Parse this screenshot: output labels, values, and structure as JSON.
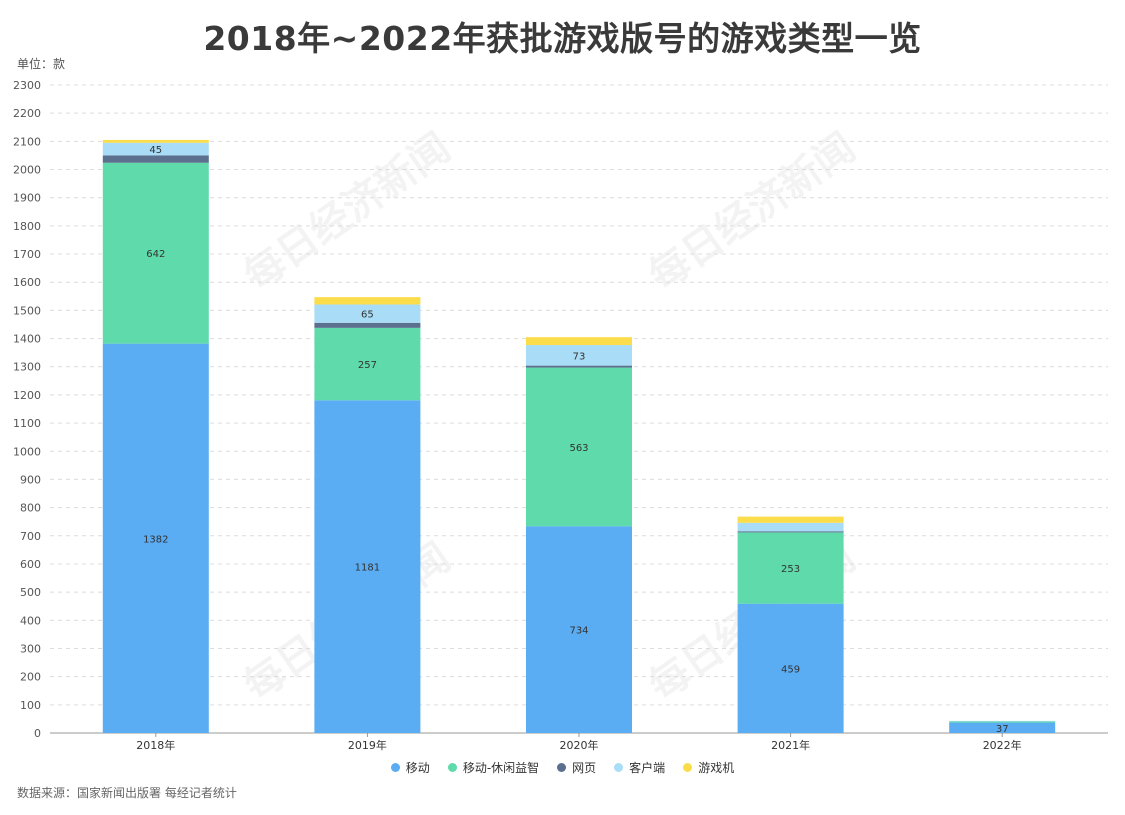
{
  "title": "2018年~2022年获批游戏版号的游戏类型一览",
  "unit_label": "单位：款",
  "source": "数据来源：国家新闻出版署 每经记者统计",
  "watermark": "每日经济新闻",
  "colors": {
    "移动": "#5aacf3",
    "移动-休闲益智": "#5fdaab",
    "网页": "#5b6f8f",
    "客户端": "#a9dcf6",
    "游戏机": "#fbdc4a"
  },
  "chart_data": {
    "type": "bar",
    "stacked": true,
    "categories": [
      "2018年",
      "2019年",
      "2020年",
      "2021年",
      "2022年"
    ],
    "ylim": [
      0,
      2300
    ],
    "yticks": [
      0,
      100,
      200,
      300,
      400,
      500,
      600,
      700,
      800,
      900,
      1000,
      1100,
      1200,
      1300,
      1400,
      1500,
      1600,
      1700,
      1800,
      1900,
      2000,
      2100,
      2200,
      2300
    ],
    "grid": true,
    "legend_position": "bottom",
    "series": [
      {
        "name": "移动",
        "values": [
          1382,
          1181,
          734,
          459,
          37
        ],
        "labels": [
          "1382",
          "1181",
          "734",
          "459",
          "37"
        ]
      },
      {
        "name": "移动-休闲益智",
        "values": [
          642,
          257,
          563,
          253,
          4
        ],
        "labels": [
          "642",
          "257",
          "563",
          "253",
          ""
        ]
      },
      {
        "name": "网页",
        "values": [
          26,
          18,
          7,
          4,
          0
        ],
        "labels": [
          "",
          "",
          "",
          "",
          ""
        ]
      },
      {
        "name": "客户端",
        "values": [
          45,
          65,
          73,
          30,
          2
        ],
        "labels": [
          "45",
          "65",
          "73",
          "",
          ""
        ]
      },
      {
        "name": "游戏机",
        "values": [
          10,
          26,
          28,
          22,
          0
        ],
        "labels": [
          "",
          "",
          "",
          "",
          ""
        ]
      }
    ]
  }
}
